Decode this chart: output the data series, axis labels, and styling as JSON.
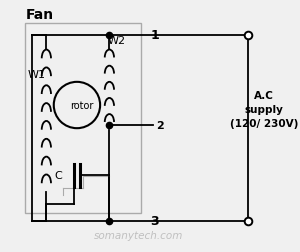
{
  "bg_color": "#f0f0f0",
  "line_color": "#000000",
  "title": "Fan",
  "label_w1": "W1",
  "label_w2": "W2",
  "label_rotor": "rotor",
  "label_c": "C",
  "label_1": "1",
  "label_2": "2",
  "label_3": "3",
  "label_ac": "A.C\nsupply\n(120/ 230V)",
  "watermark": "somanytech.com"
}
